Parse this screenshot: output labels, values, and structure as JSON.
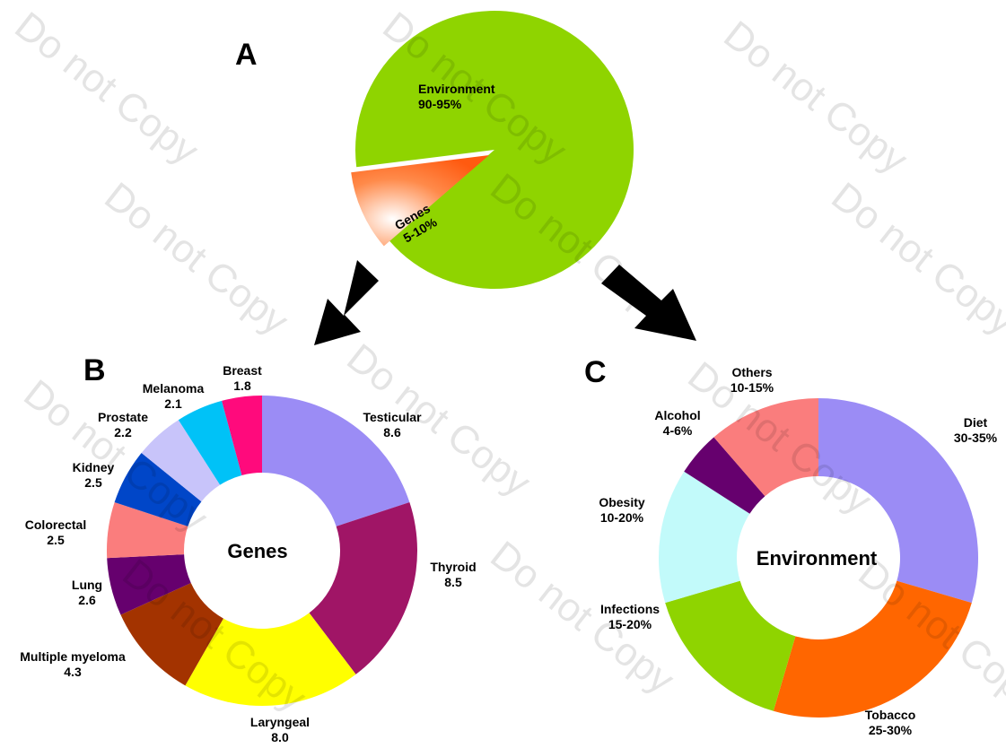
{
  "watermark": "Do not Copy",
  "chart_data": [
    {
      "type": "pie",
      "panel": "A",
      "slices": [
        {
          "label": "Environment",
          "value_text": "90-95%",
          "value": 92.5,
          "color": "#8fd400"
        },
        {
          "label": "Genes",
          "value_text": "5-10%",
          "value": 7.5,
          "color": "#ff6a1f"
        }
      ]
    },
    {
      "type": "pie",
      "panel": "B",
      "center_label": "Genes",
      "slices": [
        {
          "label": "Testicular",
          "value_text": "8.6",
          "value": 8.6,
          "color": "#9b8cf5"
        },
        {
          "label": "Thyroid",
          "value_text": "8.5",
          "value": 8.5,
          "color": "#a01566"
        },
        {
          "label": "Laryngeal",
          "value_text": "8.0",
          "value": 8.0,
          "color": "#ffff00"
        },
        {
          "label": "Multiple myeloma",
          "value_text": "4.3",
          "value": 4.3,
          "color": "#a33300"
        },
        {
          "label": "Lung",
          "value_text": "2.6",
          "value": 2.6,
          "color": "#66006e"
        },
        {
          "label": "Colorectal",
          "value_text": "2.5",
          "value": 2.5,
          "color": "#fa7d7d"
        },
        {
          "label": "Kidney",
          "value_text": "2.5",
          "value": 2.5,
          "color": "#0046c8"
        },
        {
          "label": "Prostate",
          "value_text": "2.2",
          "value": 2.2,
          "color": "#c8c4fa"
        },
        {
          "label": "Melanoma",
          "value_text": "2.1",
          "value": 2.1,
          "color": "#00c2f7"
        },
        {
          "label": "Breast",
          "value_text": "1.8",
          "value": 1.8,
          "color": "#ff0a7c"
        }
      ]
    },
    {
      "type": "pie",
      "panel": "C",
      "center_label": "Environment",
      "slices": [
        {
          "label": "Diet",
          "value_text": "30-35%",
          "value": 32.5,
          "color": "#9b8cf5"
        },
        {
          "label": "Tobacco",
          "value_text": "25-30%",
          "value": 27.5,
          "color": "#ff6600"
        },
        {
          "label": "Infections",
          "value_text": "15-20%",
          "value": 17.5,
          "color": "#8fd400"
        },
        {
          "label": "Obesity",
          "value_text": "10-20%",
          "value": 15,
          "color": "#c2fafa"
        },
        {
          "label": "Alcohol",
          "value_text": "4-6%",
          "value": 5,
          "color": "#66006e"
        },
        {
          "label": "Others",
          "value_text": "10-15%",
          "value": 12.5,
          "color": "#fa7d7d"
        }
      ]
    }
  ]
}
